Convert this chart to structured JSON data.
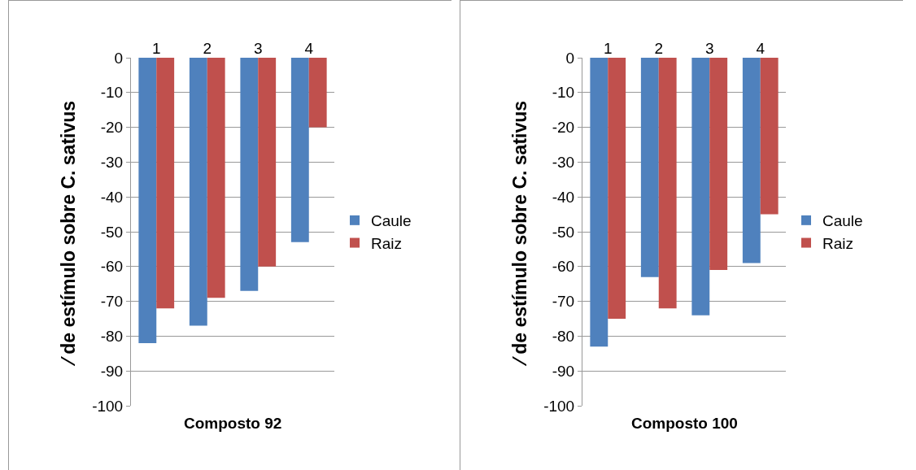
{
  "chart_data": [
    {
      "type": "bar",
      "xlabel": "Composto 92",
      "ylabel": "⁄ de estímulo sobre C. sativus",
      "categories": [
        "1",
        "2",
        "3",
        "4"
      ],
      "series": [
        {
          "name": "Caule",
          "color": "#4f81bd",
          "values": [
            -82,
            -77,
            -67,
            -53
          ]
        },
        {
          "name": "Raiz",
          "color": "#c0504d",
          "values": [
            -72,
            -69,
            -60,
            -20
          ]
        }
      ],
      "ylim": [
        -100,
        0
      ],
      "yticks": [
        -100,
        -90,
        -80,
        -70,
        -60,
        -50,
        -40,
        -30,
        -20,
        -10,
        0
      ],
      "grid": "y",
      "legend": "right"
    },
    {
      "type": "bar",
      "xlabel": "Composto 100",
      "ylabel": "⁄ de estímulo sobre C. sativus",
      "categories": [
        "1",
        "2",
        "3",
        "4"
      ],
      "series": [
        {
          "name": "Caule",
          "color": "#4f81bd",
          "values": [
            -83,
            -63,
            -74,
            -59
          ]
        },
        {
          "name": "Raiz",
          "color": "#c0504d",
          "values": [
            -75,
            -72,
            -61,
            -45
          ]
        }
      ],
      "ylim": [
        -100,
        0
      ],
      "yticks": [
        -100,
        -90,
        -80,
        -70,
        -60,
        -50,
        -40,
        -30,
        -20,
        -10,
        0
      ],
      "grid": "y",
      "legend": "right"
    }
  ]
}
